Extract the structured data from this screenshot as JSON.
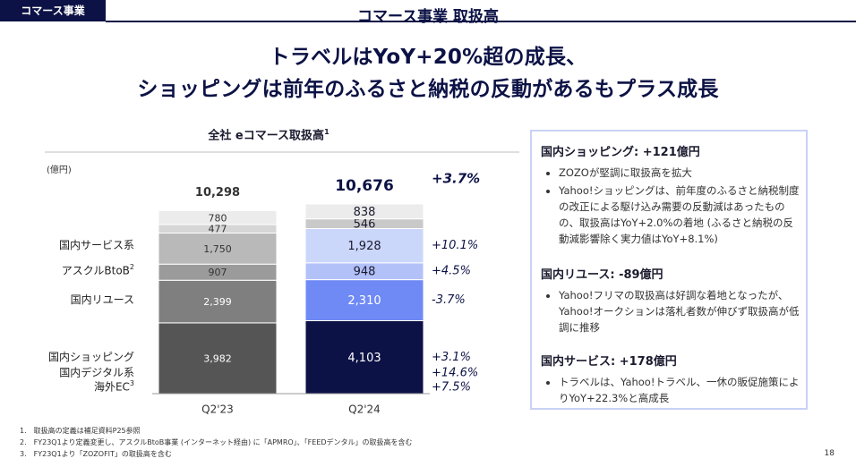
{
  "header": {
    "tag": "コマース事業",
    "section_title": "コマース事業 取扱高"
  },
  "headline": {
    "line1": "トラベルはYoY+20%超の成長、",
    "line2": "ショッピングは前年のふるさと納税の反動があるもプラス成長"
  },
  "chart_data": {
    "type": "bar",
    "stacked": true,
    "title": "全社 eコマース取扱高",
    "title_sup": "1",
    "ylabel": "(億円)",
    "categories": [
      "Q2'23",
      "Q2'24"
    ],
    "totals": [
      "10,298",
      "10,676"
    ],
    "total_change": "+3.7%",
    "series": [
      {
        "name": "国内ショッピング",
        "sup": "",
        "values": [
          3982,
          4103
        ],
        "labels": [
          "3,982",
          "4,103"
        ],
        "change": "+3.1%"
      },
      {
        "name": "国内リユース",
        "sup": "",
        "values": [
          2399,
          2310
        ],
        "labels": [
          "2,399",
          "2,310"
        ],
        "change": "-3.7%"
      },
      {
        "name": "アスクルBtoB",
        "sup": "2",
        "values": [
          907,
          948
        ],
        "labels": [
          "907",
          "948"
        ],
        "change": "+4.5%"
      },
      {
        "name": "国内サービス系",
        "sup": "",
        "values": [
          1750,
          1928
        ],
        "labels": [
          "1,750",
          "1,928"
        ],
        "change": "+10.1%"
      },
      {
        "name": "国内デジタル系",
        "sup": "",
        "values": [
          477,
          546
        ],
        "labels": [
          "477",
          "546"
        ],
        "change": "+14.6%"
      },
      {
        "name": "海外EC",
        "sup": "3",
        "values": [
          780,
          838
        ],
        "labels": [
          "780",
          "838"
        ],
        "change": "+7.5%"
      }
    ],
    "colors": {
      "q223": [
        "#555555",
        "#7f7f7f",
        "#9b9b9b",
        "#b9b9b9",
        "#d6d6d6",
        "#ececec"
      ],
      "q224": [
        "#0c1245",
        "#6f89f5",
        "#b3c1f9",
        "#cbd6fb",
        "#c9c9c9",
        "#ececec"
      ]
    }
  },
  "panel": {
    "sections": [
      {
        "heading": "国内ショッピング: +121億円",
        "bullets": [
          "ZOZOが堅調に取扱高を拡大",
          "Yahoo!ショッピングは、前年度のふるさと納税制度の改正による駆け込み需要の反動減はあったものの、取扱高はYoY+2.0%の着地 (ふるさと納税の反動減影響除く実力値はYoY+8.1%)"
        ]
      },
      {
        "heading": "国内リユース: -89億円",
        "bullets": [
          "Yahoo!フリマの取扱高は好調な着地となったが、Yahoo!オークションは落札者数が伸びず取扱高が低調に推移"
        ]
      },
      {
        "heading": "国内サービス: +178億円",
        "bullets": [
          "トラベルは、Yahoo!トラベル、一休の販促施策によりYoY+22.3%と高成長"
        ]
      }
    ]
  },
  "footnotes": [
    "1.　取扱高の定義は補足資料P25参照",
    "2.　FY23Q1より定義変更し、アスクルBtoB事業 (インターネット経由) に「APMRO」、「FEEDデンタル」の取扱高を含む",
    "3.　FY23Q1より「ZOZOFIT」の取扱高を含む"
  ],
  "page_number": "18"
}
